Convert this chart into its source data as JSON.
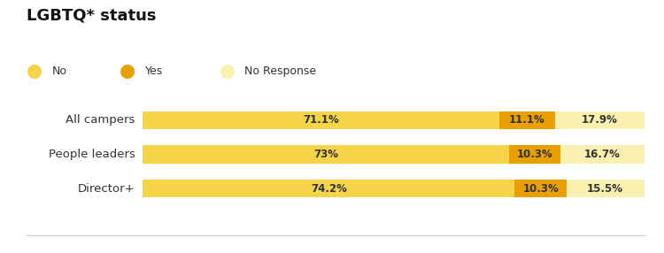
{
  "title": "LGBTQ* status",
  "categories": [
    "All campers",
    "People leaders",
    "Director+"
  ],
  "no_values": [
    71.1,
    73.0,
    74.2
  ],
  "yes_values": [
    11.1,
    10.3,
    10.3
  ],
  "no_response_values": [
    17.9,
    16.7,
    15.5
  ],
  "no_labels": [
    "71.1%",
    "73%",
    "74.2%"
  ],
  "yes_labels": [
    "11.1%",
    "10.3%",
    "10.3%"
  ],
  "no_response_labels": [
    "17.9%",
    "16.7%",
    "15.5%"
  ],
  "color_no": "#F5D44A",
  "color_yes": "#E8A000",
  "color_no_response": "#FAF0B0",
  "background_color": "#ffffff",
  "legend_items": [
    "No",
    "Yes",
    "No Response"
  ],
  "legend_colors": [
    "#F5D44A",
    "#E8A000",
    "#FAF0B0"
  ],
  "bar_height": 0.52,
  "text_color": "#333333",
  "title_color": "#111111",
  "bottom_line_color": "#cccccc"
}
